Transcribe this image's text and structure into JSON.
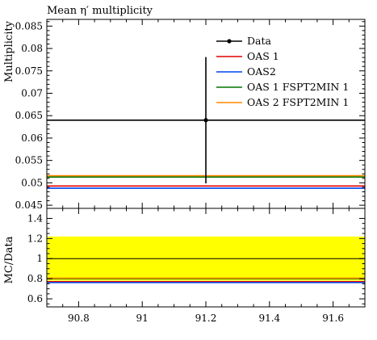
{
  "chart_data": [
    {
      "type": "line",
      "title": "Mean η′ multiplicity",
      "ylabel": "Multiplicity",
      "xlim": [
        90.7,
        91.7
      ],
      "ylim": [
        0.0443,
        0.0865
      ],
      "yticks": [
        {
          "v": 0.045,
          "label": "0.045"
        },
        {
          "v": 0.05,
          "label": "0.05"
        },
        {
          "v": 0.055,
          "label": "0.055"
        },
        {
          "v": 0.06,
          "label": "0.06"
        },
        {
          "v": 0.065,
          "label": "0.065"
        },
        {
          "v": 0.07,
          "label": "0.07"
        },
        {
          "v": 0.075,
          "label": "0.075"
        },
        {
          "v": 0.08,
          "label": "0.08"
        },
        {
          "v": 0.085,
          "label": "0.085"
        }
      ],
      "data_point": {
        "x": 91.2,
        "y": 0.064,
        "yerr_low": 0.0141,
        "yerr_high": 0.0141
      },
      "series": [
        {
          "name": "Data",
          "color": "#000000",
          "value": 0.064
        },
        {
          "name": "OAS 1",
          "color": "#dd0000",
          "value": 0.0493
        },
        {
          "name": "OAS2",
          "color": "#0044ee",
          "value": 0.0488
        },
        {
          "name": "OAS 1 FSPT2MIN 1",
          "color": "#007700",
          "value": 0.0513
        },
        {
          "name": "OAS 2 FSPT2MIN 1",
          "color": "#ff8800",
          "value": 0.0516
        }
      ],
      "legend_position": "top-right"
    },
    {
      "type": "line",
      "ylabel": "MC/Data",
      "xlim": [
        90.7,
        91.7
      ],
      "ylim": [
        0.52,
        1.5
      ],
      "yticks": [
        {
          "v": 0.6,
          "label": "0.6"
        },
        {
          "v": 0.8,
          "label": "0.8"
        },
        {
          "v": 1.0,
          "label": "1"
        },
        {
          "v": 1.2,
          "label": "1.2"
        },
        {
          "v": 1.4,
          "label": "1.4"
        }
      ],
      "xticks": [
        {
          "v": 90.8,
          "label": "90.8"
        },
        {
          "v": 91.0,
          "label": "91"
        },
        {
          "v": 91.2,
          "label": "91.2"
        },
        {
          "v": 91.4,
          "label": "91.4"
        },
        {
          "v": 91.6,
          "label": "91.6"
        }
      ],
      "error_band": [
        0.78,
        1.22
      ],
      "band_color": "#ffff00",
      "reference": 1.0,
      "ratios": [
        {
          "name": "OAS 1",
          "color": "#dd0000",
          "value": 0.771
        },
        {
          "name": "OAS2",
          "color": "#0044ee",
          "value": 0.762
        },
        {
          "name": "OAS 1 FSPT2MIN 1",
          "color": "#007700",
          "value": 0.801
        },
        {
          "name": "OAS 2 FSPT2MIN 1",
          "color": "#ff8800",
          "value": 0.806
        }
      ]
    }
  ]
}
